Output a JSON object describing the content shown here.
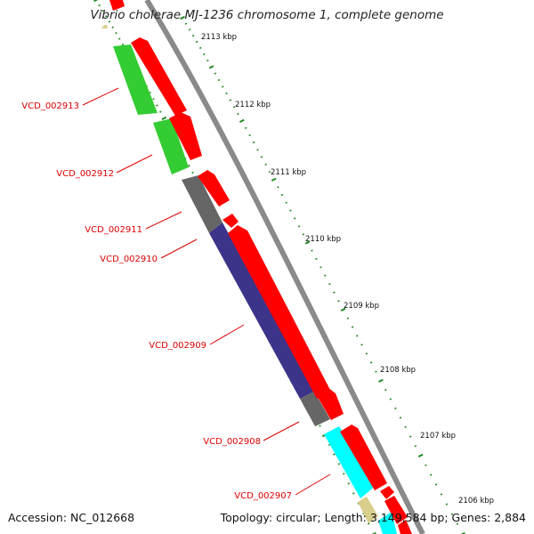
{
  "title": "Vibrio cholerae MJ-1236 chromosome 1, complete genome",
  "accession": "Accession: NC_012668",
  "summary": "Topology: circular; Length: 3,149,584 bp; Genes: 2,884",
  "colors": {
    "forward_strand": "#ff0000",
    "green_genes": "#33cc33",
    "gray_genes": "#666666",
    "navy_genes": "#3b3488",
    "cyan_genes": "#00ffff",
    "tan_genes": "#d9cf8c",
    "ticks": "#228b22",
    "labels": "#dd0000",
    "backbone": "#888888"
  },
  "scale_labels": [
    "2113 kbp",
    "2112 kbp",
    "2111 kbp",
    "2110 kbp",
    "2109 kbp",
    "2108 kbp",
    "2107 kbp",
    "2106 kbp"
  ],
  "gene_labels": [
    "VCD_002913",
    "VCD_002912",
    "VCD_002911",
    "VCD_002910",
    "VCD_002909",
    "VCD_002908",
    "VCD_002907"
  ]
}
